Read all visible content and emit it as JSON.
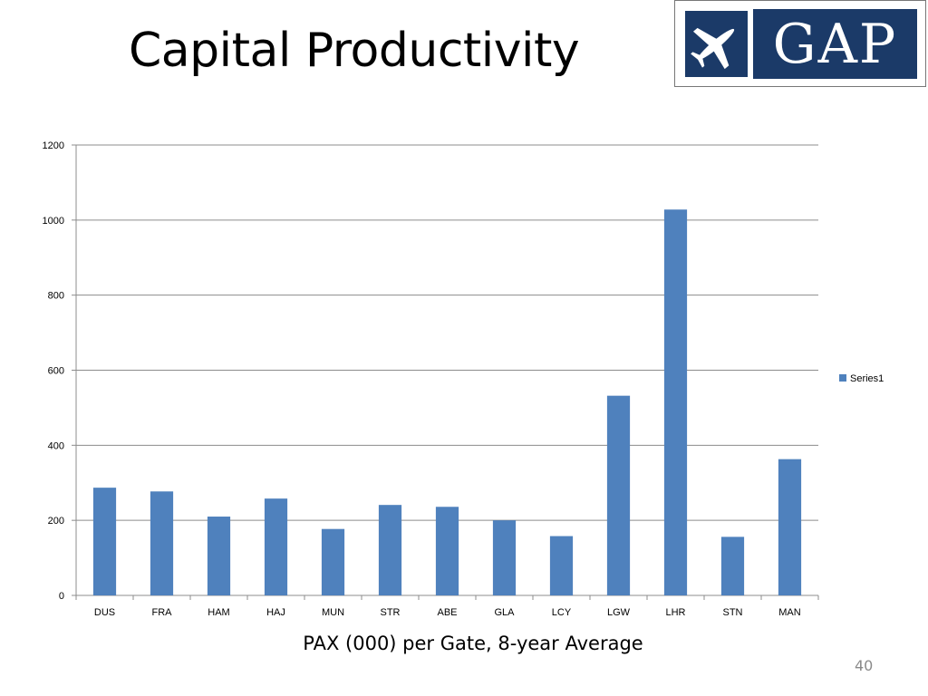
{
  "slide": {
    "title": "Capital Productivity",
    "caption": "PAX (000) per Gate, 8-year Average",
    "slide_number": "40",
    "logo_text": "GAP",
    "logo_icon": "airplane-icon",
    "brand_color": "#1b3a68"
  },
  "chart_data": {
    "type": "bar",
    "categories": [
      "DUS",
      "FRA",
      "HAM",
      "HAJ",
      "MUN",
      "STR",
      "ABE",
      "GLA",
      "LCY",
      "LGW",
      "LHR",
      "STN",
      "MAN"
    ],
    "series": [
      {
        "name": "Series1",
        "values": [
          287,
          277,
          210,
          258,
          177,
          241,
          236,
          200,
          158,
          532,
          1028,
          156,
          363
        ],
        "color": "#4f81bd"
      }
    ],
    "yticks": [
      0,
      200,
      400,
      600,
      800,
      1000,
      1200
    ],
    "ylim": [
      0,
      1200
    ],
    "grid": true,
    "legend": "right"
  }
}
